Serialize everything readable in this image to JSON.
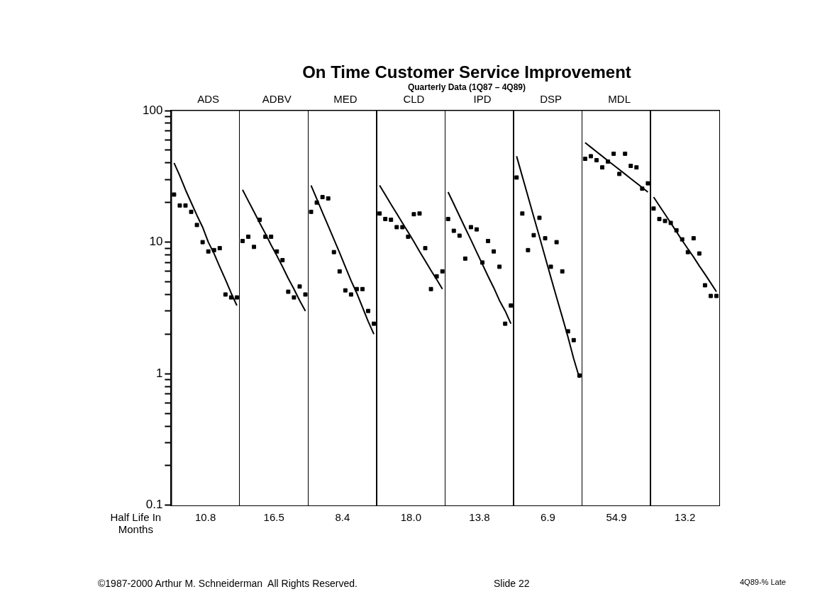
{
  "chart_data": {
    "type": "scatter",
    "title": "On Time Customer Service Improvement",
    "subtitle": "Quarterly Data (1Q87 – 4Q89)",
    "xlabel": "Half Life In Months",
    "log": "y",
    "grid": false,
    "legend": false,
    "marker": "square",
    "categories": [
      null,
      null,
      null,
      null,
      null,
      null,
      "ADS",
      null,
      null,
      null,
      null,
      null,
      null,
      null,
      null,
      null,
      null,
      null,
      "ADBV",
      null,
      null,
      null,
      null,
      null,
      null,
      null,
      null,
      null,
      null,
      null,
      "MED",
      null,
      null,
      null,
      null,
      null,
      null,
      null,
      null,
      null,
      null,
      null,
      "CLD",
      null,
      null,
      null,
      null,
      null,
      null,
      null,
      null,
      null,
      null,
      null,
      "IPD",
      null,
      null,
      null,
      null,
      null,
      null,
      null,
      null,
      null,
      null,
      null,
      "DSP",
      null,
      null,
      null,
      null,
      null,
      null,
      null,
      null,
      null,
      null,
      null,
      "MDL",
      null,
      null,
      null,
      null,
      null,
      null,
      null,
      null,
      null,
      null,
      null,
      null,
      null,
      null,
      null,
      null,
      null
    ],
    "ylim": [
      0.1,
      100
    ],
    "yticks": [
      0.1,
      {
        "value": 0.2,
        "label": null
      },
      {
        "value": 0.3,
        "label": null
      },
      {
        "value": 0.4,
        "label": null
      },
      {
        "value": 0.5,
        "label": null
      },
      {
        "value": 0.6,
        "label": null
      },
      {
        "value": 0.7,
        "label": null
      },
      {
        "value": 0.8,
        "label": null
      },
      {
        "value": 0.9,
        "label": null
      },
      1,
      {
        "value": 2,
        "label": null
      },
      {
        "value": 3,
        "label": null
      },
      {
        "value": 4,
        "label": null
      },
      {
        "value": 5,
        "label": null
      },
      {
        "value": 6,
        "label": null
      },
      {
        "value": 7,
        "label": null
      },
      {
        "value": 8,
        "label": null
      },
      {
        "value": 9,
        "label": null
      },
      10,
      {
        "value": 20,
        "label": null
      },
      {
        "value": 30,
        "label": null
      },
      {
        "value": 40,
        "label": null
      },
      {
        "value": 50,
        "label": null
      },
      {
        "value": 60,
        "label": null
      },
      {
        "value": 70,
        "label": null
      },
      {
        "value": 80,
        "label": null
      },
      {
        "value": 90,
        "label": null
      },
      100
    ],
    "series": [
      {
        "color": "#000000",
        "values": [
          23,
          19,
          19,
          17,
          13.5,
          10,
          8.5,
          8.7,
          9,
          4,
          3.8,
          3.8,
          null,
          null,
          null,
          null,
          null,
          null,
          null,
          null,
          null,
          null,
          null,
          null,
          null,
          null,
          null,
          null,
          null,
          null,
          null,
          null,
          null,
          null,
          null,
          null,
          null,
          null,
          null,
          null,
          null,
          null,
          null,
          null,
          null,
          null,
          null,
          null,
          null,
          null,
          null,
          null,
          null,
          null,
          null,
          null,
          null,
          null,
          null,
          null,
          null,
          null,
          null,
          null,
          null,
          null,
          null,
          null,
          null,
          null,
          null,
          null,
          null,
          null,
          null,
          null,
          null,
          null,
          null,
          null,
          null,
          null,
          null,
          null,
          null,
          null,
          null,
          null,
          null,
          null,
          null,
          null,
          null,
          null,
          null,
          null
        ]
      },
      {
        "type": "line",
        "marker": "none",
        "color": "#000000",
        "values": [
          40,
          32,
          25,
          20,
          16,
          13,
          10,
          8.2,
          6.5,
          5.2,
          4.1,
          3.3,
          null,
          null,
          null,
          null,
          null,
          null,
          null,
          null,
          null,
          null,
          null,
          null,
          null,
          null,
          null,
          null,
          null,
          null,
          null,
          null,
          null,
          null,
          null,
          null,
          null,
          null,
          null,
          null,
          null,
          null,
          null,
          null,
          null,
          null,
          null,
          null,
          null,
          null,
          null,
          null,
          null,
          null,
          null,
          null,
          null,
          null,
          null,
          null,
          null,
          null,
          null,
          null,
          null,
          null,
          null,
          null,
          null,
          null,
          null,
          null,
          null,
          null,
          null,
          null,
          null,
          null,
          null,
          null,
          null,
          null,
          null,
          null,
          null,
          null,
          null,
          null,
          null,
          null,
          null,
          null,
          null,
          null,
          null,
          null
        ]
      },
      {
        "color": "#000000",
        "values": [
          null,
          null,
          null,
          null,
          null,
          null,
          null,
          null,
          null,
          null,
          null,
          null,
          10.2,
          11,
          9.2,
          14.8,
          11,
          11,
          8.5,
          7.3,
          4.2,
          3.8,
          4.6,
          4,
          null,
          null,
          null,
          null,
          null,
          null,
          null,
          null,
          null,
          null,
          null,
          null,
          null,
          null,
          null,
          null,
          null,
          null,
          null,
          null,
          null,
          null,
          null,
          null,
          null,
          null,
          null,
          null,
          null,
          null,
          null,
          null,
          null,
          null,
          null,
          null,
          null,
          null,
          null,
          null,
          null,
          null,
          null,
          null,
          null,
          null,
          null,
          null,
          null,
          null,
          null,
          null,
          null,
          null,
          null,
          null,
          null,
          null,
          null,
          null,
          null,
          null,
          null,
          null,
          null,
          null,
          null,
          null,
          null,
          null,
          null,
          null
        ]
      },
      {
        "type": "line",
        "marker": "none",
        "color": "#000000",
        "values": [
          null,
          null,
          null,
          null,
          null,
          null,
          null,
          null,
          null,
          null,
          null,
          null,
          25,
          20.6,
          17,
          14,
          11.6,
          9.5,
          7.9,
          6.5,
          5.3,
          4.4,
          3.6,
          3,
          null,
          null,
          null,
          null,
          null,
          null,
          null,
          null,
          null,
          null,
          null,
          null,
          null,
          null,
          null,
          null,
          null,
          null,
          null,
          null,
          null,
          null,
          null,
          null,
          null,
          null,
          null,
          null,
          null,
          null,
          null,
          null,
          null,
          null,
          null,
          null,
          null,
          null,
          null,
          null,
          null,
          null,
          null,
          null,
          null,
          null,
          null,
          null,
          null,
          null,
          null,
          null,
          null,
          null,
          null,
          null,
          null,
          null,
          null,
          null,
          null,
          null,
          null,
          null,
          null,
          null,
          null,
          null,
          null,
          null,
          null,
          null
        ]
      },
      {
        "color": "#000000",
        "values": [
          null,
          null,
          null,
          null,
          null,
          null,
          null,
          null,
          null,
          null,
          null,
          null,
          null,
          null,
          null,
          null,
          null,
          null,
          null,
          null,
          null,
          null,
          null,
          null,
          17,
          20,
          22,
          21.5,
          8.4,
          6,
          4.3,
          4,
          4.4,
          4.4,
          3,
          2.4,
          null,
          null,
          null,
          null,
          null,
          null,
          null,
          null,
          null,
          null,
          null,
          null,
          null,
          null,
          null,
          null,
          null,
          null,
          null,
          null,
          null,
          null,
          null,
          null,
          null,
          null,
          null,
          null,
          null,
          null,
          null,
          null,
          null,
          null,
          null,
          null,
          null,
          null,
          null,
          null,
          null,
          null,
          null,
          null,
          null,
          null,
          null,
          null,
          null,
          null,
          null,
          null,
          null,
          null,
          null,
          null,
          null,
          null,
          null,
          null
        ]
      },
      {
        "type": "line",
        "marker": "none",
        "color": "#000000",
        "values": [
          null,
          null,
          null,
          null,
          null,
          null,
          null,
          null,
          null,
          null,
          null,
          null,
          null,
          null,
          null,
          null,
          null,
          null,
          null,
          null,
          null,
          null,
          null,
          null,
          27,
          21.3,
          16.8,
          13.3,
          10.5,
          8.3,
          6.5,
          5.1,
          4.1,
          3.2,
          2.5,
          2,
          null,
          null,
          null,
          null,
          null,
          null,
          null,
          null,
          null,
          null,
          null,
          null,
          null,
          null,
          null,
          null,
          null,
          null,
          null,
          null,
          null,
          null,
          null,
          null,
          null,
          null,
          null,
          null,
          null,
          null,
          null,
          null,
          null,
          null,
          null,
          null,
          null,
          null,
          null,
          null,
          null,
          null,
          null,
          null,
          null,
          null,
          null,
          null,
          null,
          null,
          null,
          null,
          null,
          null,
          null,
          null,
          null,
          null,
          null,
          null
        ]
      },
      {
        "color": "#000000",
        "values": [
          null,
          null,
          null,
          null,
          null,
          null,
          null,
          null,
          null,
          null,
          null,
          null,
          null,
          null,
          null,
          null,
          null,
          null,
          null,
          null,
          null,
          null,
          null,
          null,
          null,
          null,
          null,
          null,
          null,
          null,
          null,
          null,
          null,
          null,
          null,
          null,
          16.5,
          15,
          14.8,
          13,
          13,
          11,
          16.3,
          16.5,
          9,
          4.4,
          5.5,
          6,
          null,
          null,
          null,
          null,
          null,
          null,
          null,
          null,
          null,
          null,
          null,
          null,
          null,
          null,
          null,
          null,
          null,
          null,
          null,
          null,
          null,
          null,
          null,
          null,
          null,
          null,
          null,
          null,
          null,
          null,
          null,
          null,
          null,
          null,
          null,
          null,
          null,
          null,
          null,
          null,
          null,
          null,
          null,
          null,
          null,
          null,
          null,
          null
        ]
      },
      {
        "type": "line",
        "marker": "none",
        "color": "#000000",
        "values": [
          null,
          null,
          null,
          null,
          null,
          null,
          null,
          null,
          null,
          null,
          null,
          null,
          null,
          null,
          null,
          null,
          null,
          null,
          null,
          null,
          null,
          null,
          null,
          null,
          null,
          null,
          null,
          null,
          null,
          null,
          null,
          null,
          null,
          null,
          null,
          null,
          27,
          22.9,
          19.4,
          16.5,
          14,
          11.9,
          10.1,
          8.5,
          7.2,
          6.1,
          5.2,
          4.4,
          null,
          null,
          null,
          null,
          null,
          null,
          null,
          null,
          null,
          null,
          null,
          null,
          null,
          null,
          null,
          null,
          null,
          null,
          null,
          null,
          null,
          null,
          null,
          null,
          null,
          null,
          null,
          null,
          null,
          null,
          null,
          null,
          null,
          null,
          null,
          null,
          null,
          null,
          null,
          null,
          null,
          null,
          null,
          null,
          null,
          null,
          null,
          null
        ]
      },
      {
        "color": "#000000",
        "values": [
          null,
          null,
          null,
          null,
          null,
          null,
          null,
          null,
          null,
          null,
          null,
          null,
          null,
          null,
          null,
          null,
          null,
          null,
          null,
          null,
          null,
          null,
          null,
          null,
          null,
          null,
          null,
          null,
          null,
          null,
          null,
          null,
          null,
          null,
          null,
          null,
          null,
          null,
          null,
          null,
          null,
          null,
          null,
          null,
          null,
          null,
          null,
          null,
          15,
          12.2,
          11.2,
          7.5,
          13,
          12.5,
          7,
          10.2,
          8.5,
          6.5,
          2.4,
          3.3,
          null,
          null,
          null,
          null,
          null,
          null,
          null,
          null,
          null,
          null,
          null,
          null,
          null,
          null,
          null,
          null,
          null,
          null,
          null,
          null,
          null,
          null,
          null,
          null,
          null,
          null,
          null,
          null,
          null,
          null,
          null,
          null,
          null,
          null,
          null,
          null
        ]
      },
      {
        "type": "line",
        "marker": "none",
        "color": "#000000",
        "values": [
          null,
          null,
          null,
          null,
          null,
          null,
          null,
          null,
          null,
          null,
          null,
          null,
          null,
          null,
          null,
          null,
          null,
          null,
          null,
          null,
          null,
          null,
          null,
          null,
          null,
          null,
          null,
          null,
          null,
          null,
          null,
          null,
          null,
          null,
          null,
          null,
          null,
          null,
          null,
          null,
          null,
          null,
          null,
          null,
          null,
          null,
          null,
          null,
          24,
          19.5,
          15.8,
          12.8,
          10.4,
          8.4,
          6.8,
          5.5,
          4.5,
          3.6,
          3,
          2.4,
          null,
          null,
          null,
          null,
          null,
          null,
          null,
          null,
          null,
          null,
          null,
          null,
          null,
          null,
          null,
          null,
          null,
          null,
          null,
          null,
          null,
          null,
          null,
          null,
          null,
          null,
          null,
          null,
          null,
          null,
          null,
          null,
          null,
          null,
          null,
          null
        ]
      },
      {
        "color": "#000000",
        "values": [
          null,
          null,
          null,
          null,
          null,
          null,
          null,
          null,
          null,
          null,
          null,
          null,
          null,
          null,
          null,
          null,
          null,
          null,
          null,
          null,
          null,
          null,
          null,
          null,
          null,
          null,
          null,
          null,
          null,
          null,
          null,
          null,
          null,
          null,
          null,
          null,
          null,
          null,
          null,
          null,
          null,
          null,
          null,
          null,
          null,
          null,
          null,
          null,
          null,
          null,
          null,
          null,
          null,
          null,
          null,
          null,
          null,
          null,
          null,
          null,
          31,
          16.5,
          8.7,
          11.3,
          15.3,
          10.7,
          6.5,
          10,
          6,
          2.1,
          1.8,
          0.97,
          null,
          null,
          null,
          null,
          null,
          null,
          null,
          null,
          null,
          null,
          null,
          null,
          null,
          null,
          null,
          null,
          null,
          null,
          null,
          null,
          null,
          null,
          null,
          null
        ]
      },
      {
        "type": "line",
        "marker": "none",
        "color": "#000000",
        "values": [
          null,
          null,
          null,
          null,
          null,
          null,
          null,
          null,
          null,
          null,
          null,
          null,
          null,
          null,
          null,
          null,
          null,
          null,
          null,
          null,
          null,
          null,
          null,
          null,
          null,
          null,
          null,
          null,
          null,
          null,
          null,
          null,
          null,
          null,
          null,
          null,
          null,
          null,
          null,
          null,
          null,
          null,
          null,
          null,
          null,
          null,
          null,
          null,
          null,
          null,
          null,
          null,
          null,
          null,
          null,
          null,
          null,
          null,
          null,
          null,
          45,
          31.6,
          22.2,
          15.6,
          11,
          7.7,
          5.4,
          3.8,
          2.7,
          1.9,
          1.3,
          0.93,
          null,
          null,
          null,
          null,
          null,
          null,
          null,
          null,
          null,
          null,
          null,
          null,
          null,
          null,
          null,
          null,
          null,
          null,
          null,
          null,
          null,
          null,
          null,
          null
        ]
      },
      {
        "color": "#000000",
        "values": [
          null,
          null,
          null,
          null,
          null,
          null,
          null,
          null,
          null,
          null,
          null,
          null,
          null,
          null,
          null,
          null,
          null,
          null,
          null,
          null,
          null,
          null,
          null,
          null,
          null,
          null,
          null,
          null,
          null,
          null,
          null,
          null,
          null,
          null,
          null,
          null,
          null,
          null,
          null,
          null,
          null,
          null,
          null,
          null,
          null,
          null,
          null,
          null,
          null,
          null,
          null,
          null,
          null,
          null,
          null,
          null,
          null,
          null,
          null,
          null,
          null,
          null,
          null,
          null,
          null,
          null,
          null,
          null,
          null,
          null,
          null,
          null,
          43,
          45,
          42,
          37,
          41,
          47,
          33,
          47,
          38,
          37,
          25.5,
          28,
          null,
          null,
          null,
          null,
          null,
          null,
          null,
          null,
          null,
          null,
          null,
          null
        ]
      },
      {
        "type": "line",
        "marker": "none",
        "color": "#000000",
        "values": [
          null,
          null,
          null,
          null,
          null,
          null,
          null,
          null,
          null,
          null,
          null,
          null,
          null,
          null,
          null,
          null,
          null,
          null,
          null,
          null,
          null,
          null,
          null,
          null,
          null,
          null,
          null,
          null,
          null,
          null,
          null,
          null,
          null,
          null,
          null,
          null,
          null,
          null,
          null,
          null,
          null,
          null,
          null,
          null,
          null,
          null,
          null,
          null,
          null,
          null,
          null,
          null,
          null,
          null,
          null,
          null,
          null,
          null,
          null,
          null,
          null,
          null,
          null,
          null,
          null,
          null,
          null,
          null,
          null,
          null,
          null,
          null,
          57,
          52.7,
          48.7,
          45,
          41.6,
          38.5,
          35.6,
          32.9,
          30.4,
          28.1,
          26,
          24,
          null,
          null,
          null,
          null,
          null,
          null,
          null,
          null,
          null,
          null,
          null,
          null
        ]
      },
      {
        "color": "#000000",
        "values": [
          null,
          null,
          null,
          null,
          null,
          null,
          null,
          null,
          null,
          null,
          null,
          null,
          null,
          null,
          null,
          null,
          null,
          null,
          null,
          null,
          null,
          null,
          null,
          null,
          null,
          null,
          null,
          null,
          null,
          null,
          null,
          null,
          null,
          null,
          null,
          null,
          null,
          null,
          null,
          null,
          null,
          null,
          null,
          null,
          null,
          null,
          null,
          null,
          null,
          null,
          null,
          null,
          null,
          null,
          null,
          null,
          null,
          null,
          null,
          null,
          null,
          null,
          null,
          null,
          null,
          null,
          null,
          null,
          null,
          null,
          null,
          null,
          null,
          null,
          null,
          null,
          null,
          null,
          null,
          null,
          null,
          null,
          null,
          null,
          18,
          15,
          14.5,
          14,
          12.3,
          10.5,
          8.4,
          10.7,
          8.2,
          4.7,
          3.9,
          3.9
        ]
      },
      {
        "type": "line",
        "marker": "none",
        "color": "#000000",
        "values": [
          null,
          null,
          null,
          null,
          null,
          null,
          null,
          null,
          null,
          null,
          null,
          null,
          null,
          null,
          null,
          null,
          null,
          null,
          null,
          null,
          null,
          null,
          null,
          null,
          null,
          null,
          null,
          null,
          null,
          null,
          null,
          null,
          null,
          null,
          null,
          null,
          null,
          null,
          null,
          null,
          null,
          null,
          null,
          null,
          null,
          null,
          null,
          null,
          null,
          null,
          null,
          null,
          null,
          null,
          null,
          null,
          null,
          null,
          null,
          null,
          null,
          null,
          null,
          null,
          null,
          null,
          null,
          null,
          null,
          null,
          null,
          null,
          null,
          null,
          null,
          null,
          null,
          null,
          null,
          null,
          null,
          null,
          null,
          null,
          22,
          18.9,
          16.3,
          14,
          12,
          10.3,
          8.9,
          7.7,
          6.6,
          5.7,
          4.9,
          4.2
        ]
      }
    ],
    "annotations": [
      "10.8",
      "16.5",
      "8.4",
      "18.0",
      "13.8",
      "6.9",
      "54.9",
      "13.2",
      "©1987-2000 Arthur M. Schneiderman  All Rights Reserved.",
      "Slide 22",
      "4Q89-% Late"
    ]
  }
}
